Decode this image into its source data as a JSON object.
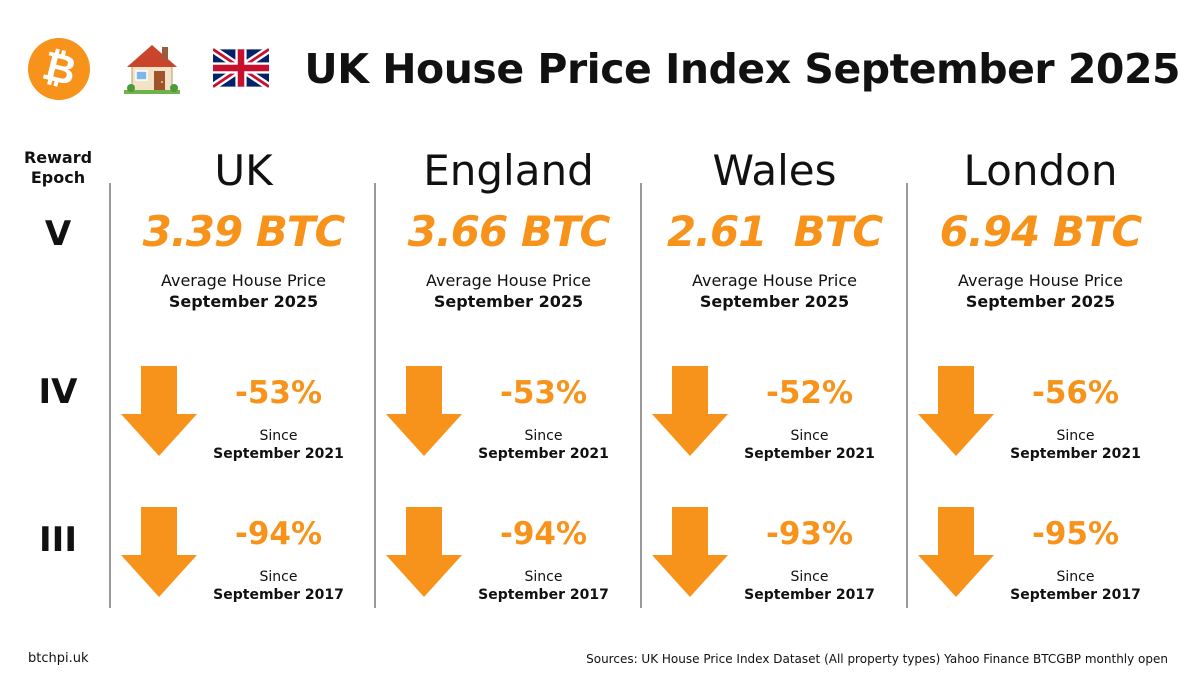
{
  "header": {
    "title": "UK House Price Index September 2025",
    "logo_icon": "bitcoin-logo-icon",
    "logo_glyph": "₿",
    "house_icon": "house-icon",
    "flag_icon": "uk-flag-icon"
  },
  "epochs": {
    "heading_line1": "Reward",
    "heading_line2": "Epoch",
    "row1": "V",
    "row2": "IV",
    "row3": "III"
  },
  "columns": [
    {
      "region": "UK",
      "price": "3.39 BTC",
      "price_label": "Average House Price",
      "price_date": "September 2025",
      "change1": {
        "value": "-53%",
        "since": "Since",
        "date": "September 2021"
      },
      "change2": {
        "value": "-94%",
        "since": "Since",
        "date": "September 2017"
      }
    },
    {
      "region": "England",
      "price": "3.66 BTC",
      "price_label": "Average House Price",
      "price_date": "September 2025",
      "change1": {
        "value": "-53%",
        "since": "Since",
        "date": "September 2021"
      },
      "change2": {
        "value": "-94%",
        "since": "Since",
        "date": "September 2017"
      }
    },
    {
      "region": "Wales",
      "price": "2.61  BTC",
      "price_label": "Average House Price",
      "price_date": "September 2025",
      "change1": {
        "value": "-52%",
        "since": "Since",
        "date": "September 2021"
      },
      "change2": {
        "value": "-93%",
        "since": "Since",
        "date": "September 2017"
      }
    },
    {
      "region": "London",
      "price": "6.94 BTC",
      "price_label": "Average House Price",
      "price_date": "September 2025",
      "change1": {
        "value": "-56%",
        "since": "Since",
        "date": "September 2021"
      },
      "change2": {
        "value": "-95%",
        "since": "Since",
        "date": "September 2017"
      }
    }
  ],
  "footer": {
    "site": "btchpi.uk",
    "sources": "Sources: UK House Price Index Dataset (All property types) Yahoo Finance BTCGBP monthly open"
  },
  "colors": {
    "accent": "#F7931A",
    "arrow": "#F7931A",
    "divider": "#9a9a9a",
    "text": "#111111"
  },
  "icons": {
    "arrow": "down-arrow-icon"
  }
}
